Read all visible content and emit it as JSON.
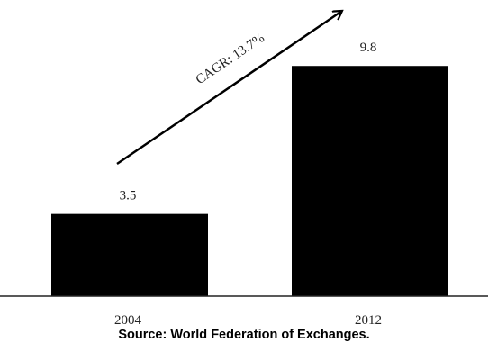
{
  "chart_data": {
    "type": "bar",
    "categories": [
      "2004",
      "2012"
    ],
    "values": [
      3.5,
      9.8
    ],
    "data_labels": [
      "3.5",
      "9.8"
    ],
    "annotation": "CAGR: 13.7%",
    "title": "",
    "xlabel": "",
    "ylabel": "",
    "ylim": [
      0,
      11
    ],
    "grid": false,
    "legend": "none",
    "bar_color": "#000000"
  },
  "source": "Source: World Federation of Exchanges."
}
